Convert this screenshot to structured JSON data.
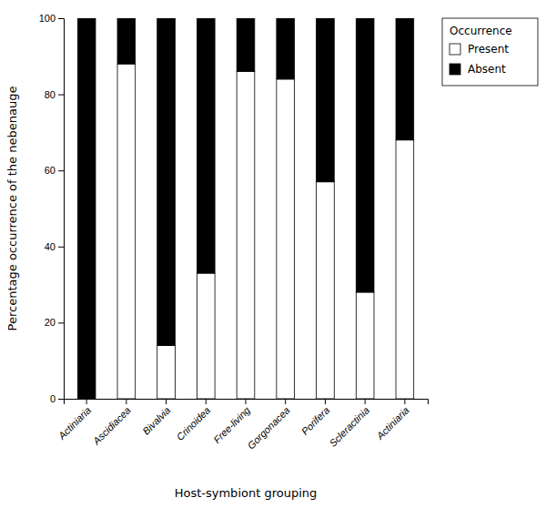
{
  "chart_data": {
    "type": "bar",
    "stacked": true,
    "categories": [
      "Actiniaria",
      "Ascidiacea",
      "Bivalvia",
      "Crinoidea",
      "Free-living",
      "Gorgonacea",
      "Porifera",
      "Scleractinia",
      "Actiniaria"
    ],
    "series": [
      {
        "name": "Present",
        "color": "#ffffff",
        "values": [
          0,
          88,
          14,
          33,
          86,
          84,
          57,
          28,
          68
        ]
      },
      {
        "name": "Absent",
        "color": "#000000",
        "values": [
          100,
          12,
          86,
          67,
          14,
          16,
          43,
          72,
          32
        ]
      }
    ],
    "xlabel": "Host-symbiont grouping",
    "ylabel": "Percentage occurrence of the nebenauge",
    "legend_title": "Occurrence",
    "legend": "upper right",
    "ylim": [
      0,
      100
    ],
    "yticks": [
      0,
      20,
      40,
      60,
      80,
      100
    ],
    "grid": false
  }
}
